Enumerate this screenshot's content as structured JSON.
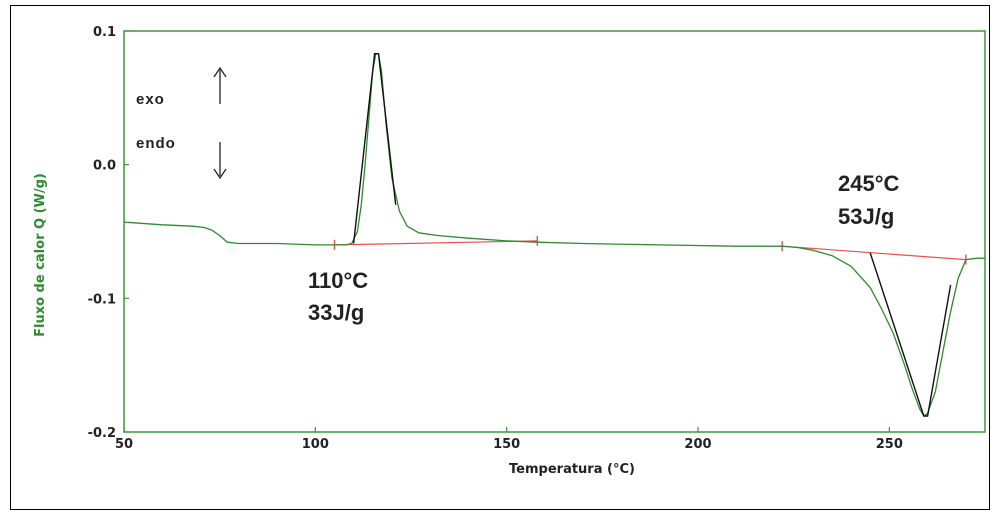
{
  "chart_data": {
    "type": "line",
    "xlabel": "Temperatura (°C)",
    "ylabel": "Fluxo de calor Q (W/g)",
    "xlim": [
      50,
      275
    ],
    "ylim": [
      -0.2,
      0.1
    ],
    "x_ticks": [
      50,
      100,
      150,
      200,
      250
    ],
    "x_tick_labels": [
      "50",
      "100",
      "150",
      "200",
      "250"
    ],
    "y_ticks": [
      0.1,
      0.0,
      -0.1,
      -0.2
    ],
    "y_tick_labels": [
      "0.1",
      "0.0",
      "-0.1",
      "-0.2"
    ],
    "grid": false,
    "colors": {
      "curve": "#2e8b2e",
      "baseline": "#e8504a",
      "integration": "#111111",
      "axis_frame": "#3a9a3a",
      "ylabel": "#2e8b2e"
    },
    "series": [
      {
        "x": [
          50,
          60,
          68,
          71,
          73,
          75,
          77,
          80,
          90,
          100,
          105,
          108,
          109.5,
          111,
          112,
          113,
          114,
          115,
          115.8,
          116.5,
          117.3,
          118.5,
          120,
          122,
          124,
          127,
          132,
          140,
          150,
          158,
          170,
          190,
          210,
          222,
          226,
          230,
          235,
          240,
          245,
          248,
          251,
          254,
          256,
          258,
          259,
          260,
          262,
          264,
          266,
          268,
          270,
          273,
          275
        ],
        "y": [
          -0.043,
          -0.045,
          -0.046,
          -0.047,
          -0.049,
          -0.053,
          -0.058,
          -0.059,
          -0.059,
          -0.06,
          -0.06,
          -0.06,
          -0.059,
          -0.05,
          -0.03,
          0.0,
          0.035,
          0.07,
          0.083,
          0.083,
          0.07,
          0.03,
          -0.01,
          -0.035,
          -0.046,
          -0.051,
          -0.053,
          -0.055,
          -0.057,
          -0.058,
          -0.059,
          -0.06,
          -0.061,
          -0.061,
          -0.062,
          -0.064,
          -0.068,
          -0.076,
          -0.092,
          -0.108,
          -0.126,
          -0.15,
          -0.168,
          -0.183,
          -0.188,
          -0.186,
          -0.17,
          -0.14,
          -0.11,
          -0.085,
          -0.071,
          -0.07,
          -0.07
        ]
      }
    ],
    "baselines": [
      {
        "x": [
          105,
          158
        ],
        "y": [
          -0.06,
          -0.057
        ]
      },
      {
        "x": [
          222,
          270
        ],
        "y": [
          -0.061,
          -0.071
        ]
      }
    ],
    "integration_lines": [
      {
        "x": [
          110,
          115.5,
          116.5,
          121
        ],
        "y": [
          -0.059,
          0.083,
          0.083,
          -0.03
        ]
      },
      {
        "x": [
          245,
          259,
          260,
          266
        ],
        "y": [
          -0.066,
          -0.188,
          -0.188,
          -0.09
        ]
      }
    ],
    "exo_label": "exo",
    "endo_label": "endo",
    "annotations": [
      {
        "line1": "110°C",
        "line2": "33J/g"
      },
      {
        "line1": "245°C",
        "line2": "53J/g"
      }
    ]
  }
}
